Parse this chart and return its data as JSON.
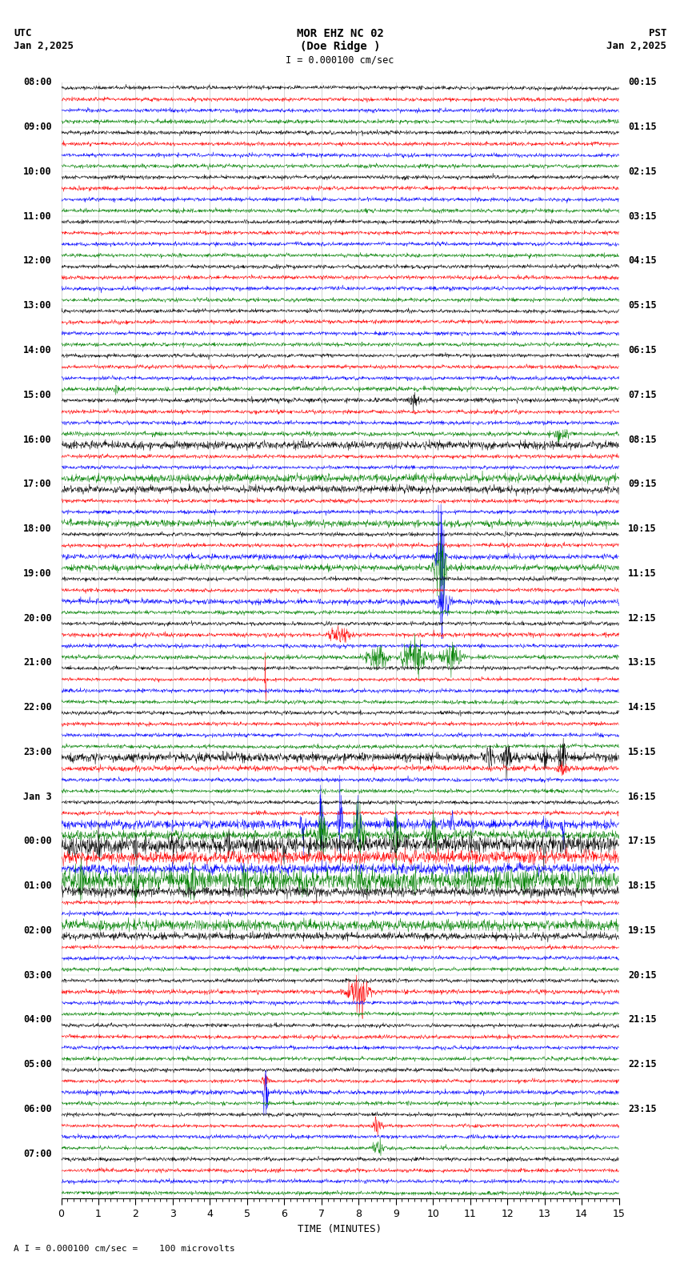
{
  "title_line1": "MOR EHZ NC 02",
  "title_line2": "(Doe Ridge )",
  "scale_label": "I = 0.000100 cm/sec",
  "utc_label": "UTC",
  "utc_date": "Jan 2,2025",
  "pst_label": "PST",
  "pst_date": "Jan 2,2025",
  "bottom_note": "A I = 0.000100 cm/sec =    100 microvolts",
  "xlabel": "TIME (MINUTES)",
  "xlim": [
    0,
    15
  ],
  "fig_width": 8.5,
  "fig_height": 15.84,
  "bg_color": "#ffffff",
  "trace_color_cycle": [
    "black",
    "red",
    "blue",
    "green"
  ],
  "font_size": 9,
  "font_size_title": 10,
  "utc_label_times": [
    "08:00",
    "09:00",
    "10:00",
    "11:00",
    "12:00",
    "13:00",
    "14:00",
    "15:00",
    "16:00",
    "17:00",
    "18:00",
    "19:00",
    "20:00",
    "21:00",
    "22:00",
    "23:00",
    "Jan 3",
    "00:00",
    "01:00",
    "02:00",
    "03:00",
    "04:00",
    "05:00",
    "06:00",
    "07:00"
  ],
  "pst_label_times": [
    "00:15",
    "01:15",
    "02:15",
    "03:15",
    "04:15",
    "05:15",
    "06:15",
    "07:15",
    "08:15",
    "09:15",
    "10:15",
    "11:15",
    "12:15",
    "13:15",
    "14:15",
    "15:15",
    "16:15",
    "17:15",
    "18:15",
    "19:15",
    "20:15",
    "21:15",
    "22:15",
    "23:15",
    ""
  ],
  "n_time_groups": 25,
  "n_traces_per_group": 4
}
